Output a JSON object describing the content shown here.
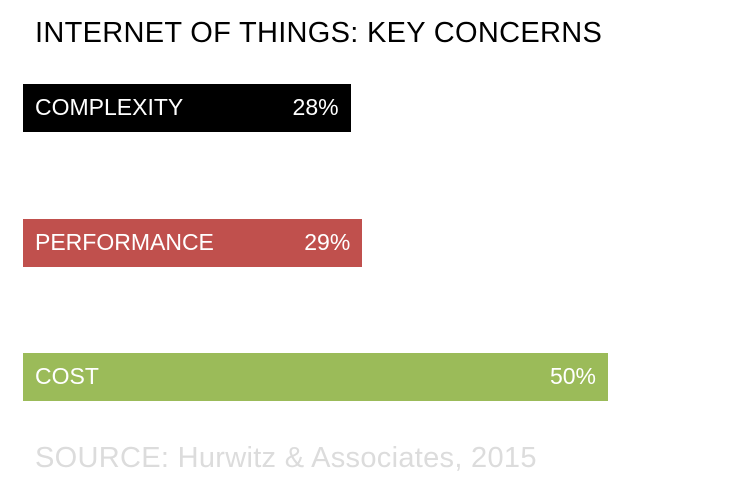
{
  "chart_data": {
    "type": "bar",
    "orientation": "horizontal",
    "title": "INTERNET OF THINGS: KEY CONCERNS",
    "categories": [
      "COMPLEXITY",
      "PERFORMANCE",
      "COST"
    ],
    "values": [
      28,
      29,
      50
    ],
    "value_labels": [
      "28%",
      "29%",
      "50%"
    ],
    "colors": [
      "#000000",
      "#c0504d",
      "#9bbb59"
    ],
    "xlim": [
      0,
      100
    ],
    "grid": false,
    "legend": "none"
  },
  "source": "SOURCE: Hurwitz & Associates, 2015"
}
